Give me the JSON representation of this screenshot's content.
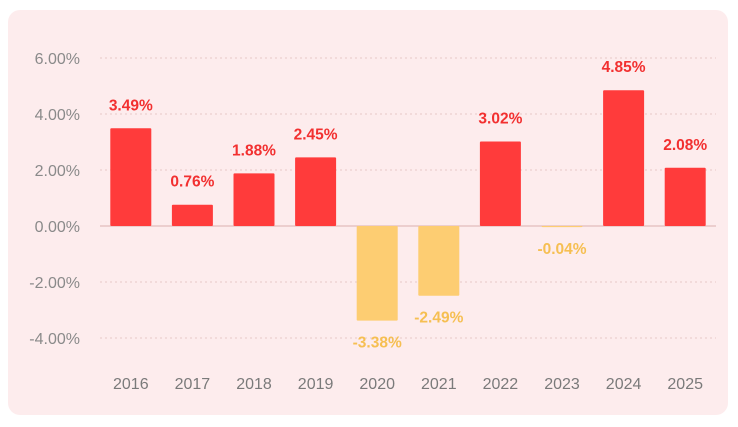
{
  "chart_data": {
    "type": "bar",
    "title": "",
    "xlabel": "",
    "ylabel": "",
    "categories": [
      "2016",
      "2017",
      "2018",
      "2019",
      "2020",
      "2021",
      "2022",
      "2023",
      "2024",
      "2025"
    ],
    "values": [
      3.49,
      0.76,
      1.88,
      2.45,
      -3.38,
      -2.49,
      3.02,
      -0.04,
      4.85,
      2.08
    ],
    "value_labels": [
      "3.49%",
      "0.76%",
      "1.88%",
      "2.45%",
      "-3.38%",
      "-2.49%",
      "3.02%",
      "-0.04%",
      "4.85%",
      "2.08%"
    ],
    "y_ticks": [
      6,
      4,
      2,
      0,
      -2,
      -4
    ],
    "y_tick_labels": [
      "6.00%",
      "4.00%",
      "2.00%",
      "0.00%",
      "-2.00%",
      "-4.00%"
    ],
    "ylim": [
      -4,
      6
    ],
    "grid": true,
    "colors": {
      "positive": "#ff3b3b",
      "negative": "#fdcd72",
      "positive_label": "#f23030",
      "negative_label": "#f6bf52",
      "grid": "#e6c8c8",
      "background": "#fdeced"
    }
  }
}
